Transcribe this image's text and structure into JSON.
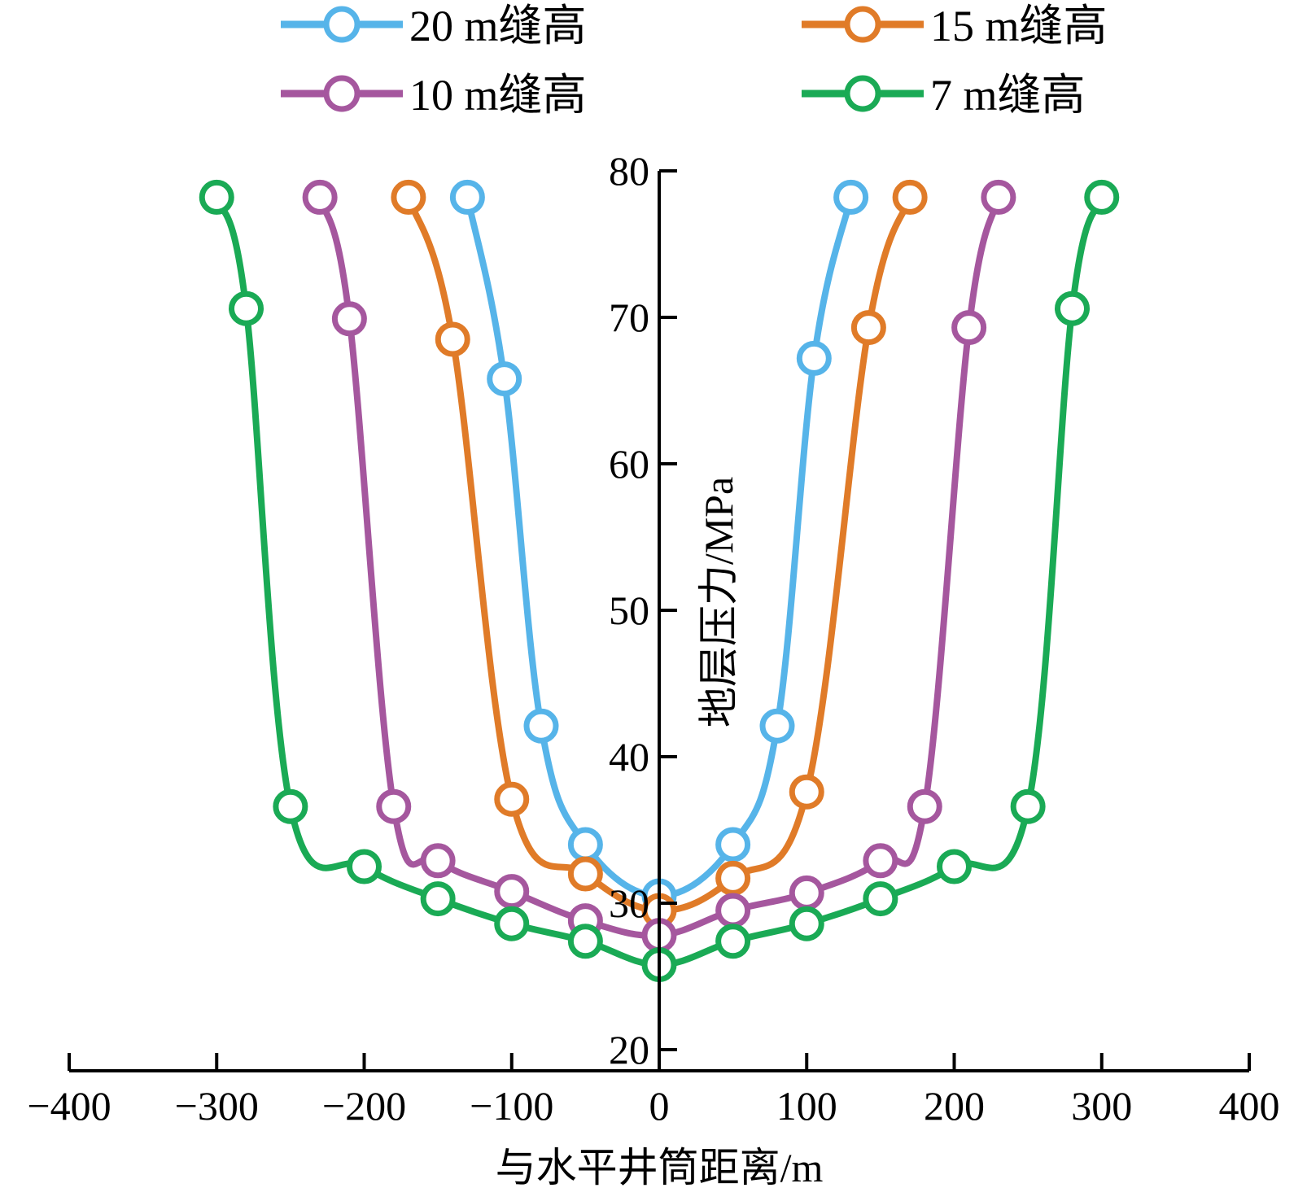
{
  "chart_data": {
    "type": "line",
    "xlabel": "与水平井筒距离/m",
    "ylabel": "地层压力/MPa",
    "xlim": [
      -400,
      400
    ],
    "ylim": [
      20,
      80
    ],
    "xticks": [
      -400,
      -300,
      -200,
      -100,
      0,
      100,
      200,
      300,
      400
    ],
    "yticks": [
      20,
      30,
      40,
      50,
      60,
      70,
      80
    ],
    "xtick_labels": [
      "−400",
      "−300",
      "−200",
      "−100",
      "0",
      "100",
      "200",
      "300",
      "400"
    ],
    "ytick_labels": [
      "20",
      "30",
      "40",
      "50",
      "60",
      "70",
      "80"
    ],
    "legend_position": "top",
    "series": [
      {
        "name": "20 m缝高",
        "color": "#56b4e9",
        "x": [
          -130,
          -105,
          -80,
          -50,
          0,
          50,
          80,
          105,
          130
        ],
        "y": [
          78.2,
          65.8,
          42.1,
          34.0,
          30.5,
          34.0,
          42.1,
          67.2,
          78.2
        ]
      },
      {
        "name": "15 m缝高",
        "color": "#e07b28",
        "x": [
          -170,
          -140,
          -100,
          -50,
          0,
          50,
          100,
          142,
          170
        ],
        "y": [
          78.2,
          68.5,
          37.1,
          32.0,
          29.5,
          31.7,
          37.6,
          69.3,
          78.2
        ]
      },
      {
        "name": "10 m缝高",
        "color": "#a5579e",
        "x": [
          -230,
          -210,
          -180,
          -150,
          -100,
          -50,
          0,
          50,
          100,
          150,
          180,
          210,
          230
        ],
        "y": [
          78.2,
          69.9,
          36.6,
          32.9,
          30.8,
          28.8,
          27.8,
          29.5,
          30.7,
          32.9,
          36.6,
          69.3,
          78.2
        ]
      },
      {
        "name": "7 m缝高",
        "color": "#1aaa55",
        "x": [
          -300,
          -280,
          -250,
          -200,
          -150,
          -100,
          -50,
          0,
          50,
          100,
          150,
          200,
          250,
          280,
          300
        ],
        "y": [
          78.2,
          70.6,
          36.6,
          32.5,
          30.3,
          28.6,
          27.4,
          25.8,
          27.4,
          28.6,
          30.3,
          32.5,
          36.6,
          70.6,
          78.2
        ]
      }
    ]
  }
}
